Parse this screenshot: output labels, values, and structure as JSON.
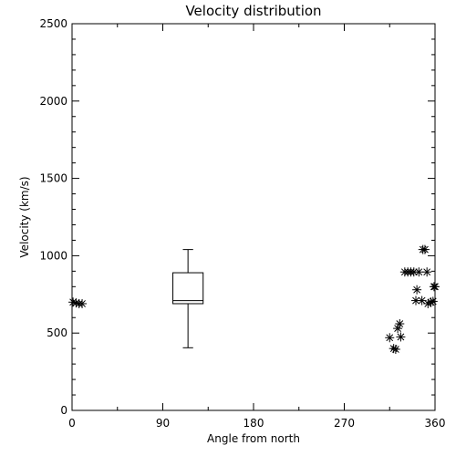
{
  "chart_data": {
    "type": "scatter",
    "title": "Velocity distribution",
    "xlabel": "Angle from north",
    "ylabel": "Velocity (km/s)",
    "xlim": [
      0,
      360
    ],
    "ylim": [
      0,
      2500
    ],
    "x_ticks": [
      "0",
      "90",
      "180",
      "270",
      "360"
    ],
    "y_ticks": [
      "0",
      "500",
      "1000",
      "1500",
      "2000",
      "2500"
    ],
    "grid": false,
    "marker": "asterisk",
    "points": [
      {
        "x": 1,
        "y": 700
      },
      {
        "x": 4,
        "y": 695
      },
      {
        "x": 7,
        "y": 690
      },
      {
        "x": 10,
        "y": 690
      },
      {
        "x": 315,
        "y": 470
      },
      {
        "x": 319,
        "y": 400
      },
      {
        "x": 321,
        "y": 395
      },
      {
        "x": 323,
        "y": 530
      },
      {
        "x": 325,
        "y": 560
      },
      {
        "x": 326,
        "y": 475
      },
      {
        "x": 330,
        "y": 895
      },
      {
        "x": 333,
        "y": 895
      },
      {
        "x": 336,
        "y": 895
      },
      {
        "x": 339,
        "y": 895
      },
      {
        "x": 341,
        "y": 710
      },
      {
        "x": 342,
        "y": 780
      },
      {
        "x": 344,
        "y": 895
      },
      {
        "x": 347,
        "y": 710
      },
      {
        "x": 348,
        "y": 1040
      },
      {
        "x": 350,
        "y": 1040
      },
      {
        "x": 352,
        "y": 895
      },
      {
        "x": 353,
        "y": 690
      },
      {
        "x": 356,
        "y": 700
      },
      {
        "x": 358,
        "y": 705
      },
      {
        "x": 359,
        "y": 800
      },
      {
        "x": 360,
        "y": 800
      }
    ],
    "boxplot": {
      "x_center": 115,
      "x_width": 30,
      "min": 405,
      "q1": 690,
      "median": 710,
      "q3": 890,
      "max": 1040
    }
  }
}
